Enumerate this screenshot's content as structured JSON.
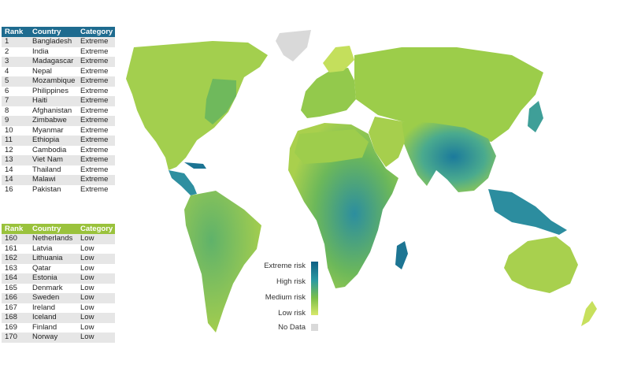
{
  "top_table": {
    "headers": [
      "Rank",
      "Country",
      "Category"
    ],
    "rows": [
      [
        "1",
        "Bangladesh",
        "Extreme"
      ],
      [
        "2",
        "India",
        "Extreme"
      ],
      [
        "3",
        "Madagascar",
        "Extreme"
      ],
      [
        "4",
        "Nepal",
        "Extreme"
      ],
      [
        "5",
        "Mozambique",
        "Extreme"
      ],
      [
        "6",
        "Philippines",
        "Extreme"
      ],
      [
        "7",
        "Haiti",
        "Extreme"
      ],
      [
        "8",
        "Afghanistan",
        "Extreme"
      ],
      [
        "9",
        "Zimbabwe",
        "Extreme"
      ],
      [
        "10",
        "Myanmar",
        "Extreme"
      ],
      [
        "11",
        "Ethiopia",
        "Extreme"
      ],
      [
        "12",
        "Cambodia",
        "Extreme"
      ],
      [
        "13",
        "Viet Nam",
        "Extreme"
      ],
      [
        "14",
        "Thailand",
        "Extreme"
      ],
      [
        "14",
        "Malawi",
        "Extreme"
      ],
      [
        "16",
        "Pakistan",
        "Extreme"
      ]
    ]
  },
  "bottom_table": {
    "headers": [
      "Rank",
      "Country",
      "Category"
    ],
    "rows": [
      [
        "160",
        "Netherlands",
        "Low"
      ],
      [
        "161",
        "Latvia",
        "Low"
      ],
      [
        "162",
        "Lithuania",
        "Low"
      ],
      [
        "163",
        "Qatar",
        "Low"
      ],
      [
        "164",
        "Estonia",
        "Low"
      ],
      [
        "165",
        "Denmark",
        "Low"
      ],
      [
        "166",
        "Sweden",
        "Low"
      ],
      [
        "167",
        "Ireland",
        "Low"
      ],
      [
        "168",
        "Iceland",
        "Low"
      ],
      [
        "169",
        "Finland",
        "Low"
      ],
      [
        "170",
        "Norway",
        "Low"
      ]
    ]
  },
  "legend": {
    "extreme": "Extreme risk",
    "high": "High risk",
    "medium": "Medium risk",
    "low": "Low risk",
    "no_data": "No Data"
  },
  "colors": {
    "extreme": "#0d5f84",
    "high": "#2a9aa2",
    "medium": "#7cbf49",
    "low": "#d8e86a",
    "no_data": "#d9d9d9",
    "top_header": "#1e6b8f",
    "bottom_header": "#9ac23c"
  }
}
